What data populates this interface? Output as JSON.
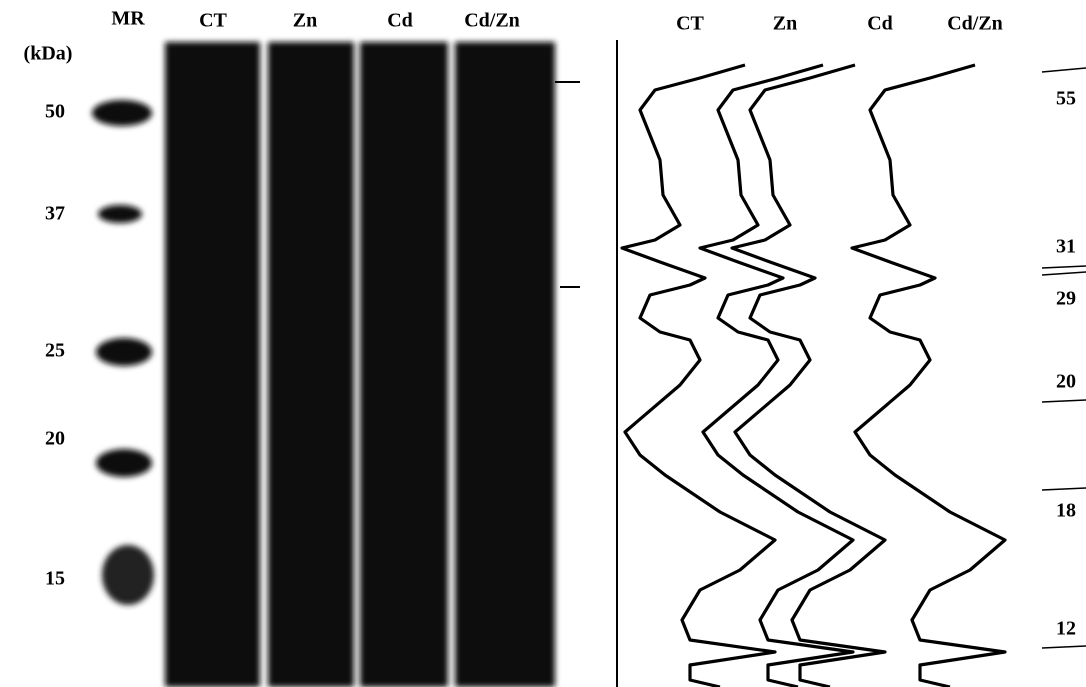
{
  "gel": {
    "unit_label": "(kDa)",
    "lanes": [
      "MR",
      "CT",
      "Zn",
      "Cd",
      "Cd/Zn"
    ],
    "markers": [
      "50",
      "37",
      "25",
      "20",
      "15"
    ]
  },
  "densitometry": {
    "lanes": [
      "CT",
      "Zn",
      "Cd",
      "Cd/Zn"
    ],
    "arrows": [
      "55",
      "31",
      "29",
      "20",
      "18",
      "12"
    ]
  }
}
